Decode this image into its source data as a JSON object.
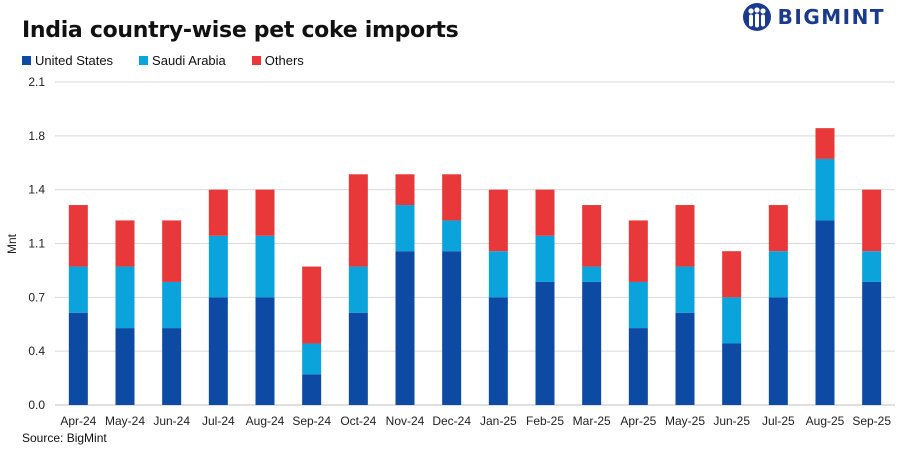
{
  "header": {
    "title": "India country-wise pet coke imports",
    "brand": "BIGMINT"
  },
  "footer": {
    "source": "Source: BigMint"
  },
  "colors": {
    "us": "#0d4aa3",
    "saudi": "#0aa3dc",
    "others": "#e8383a",
    "brand": "#1a3a8c"
  },
  "chart_data": {
    "type": "bar",
    "stacked": true,
    "title": "India country-wise pet coke imports",
    "xlabel": "",
    "ylabel": "Mnt",
    "ylim": [
      0,
      2.1
    ],
    "yticks": [
      "0.0",
      "0.4",
      "0.7",
      "1.1",
      "1.4",
      "1.8",
      "2.1"
    ],
    "ytick_values": [
      0,
      0.35,
      0.7,
      1.05,
      1.4,
      1.75,
      2.1
    ],
    "grid": true,
    "legend_position": "top-left",
    "categories": [
      "Apr-24",
      "May-24",
      "Jun-24",
      "Jul-24",
      "Aug-24",
      "Sep-24",
      "Oct-24",
      "Nov-24",
      "Dec-24",
      "Jan-25",
      "Feb-25",
      "Mar-25",
      "Apr-25",
      "May-25",
      "Jun-25",
      "Jul-25",
      "Aug-25",
      "Sep-25"
    ],
    "series": [
      {
        "name": "United States",
        "values": [
          0.6,
          0.5,
          0.5,
          0.7,
          0.7,
          0.2,
          0.6,
          1.0,
          1.0,
          0.7,
          0.8,
          0.8,
          0.5,
          0.6,
          0.4,
          0.7,
          1.2,
          0.8
        ]
      },
      {
        "name": "Saudi Arabia",
        "values": [
          0.3,
          0.4,
          0.3,
          0.4,
          0.4,
          0.2,
          0.3,
          0.3,
          0.2,
          0.3,
          0.3,
          0.1,
          0.3,
          0.3,
          0.3,
          0.3,
          0.4,
          0.2
        ]
      },
      {
        "name": "Others",
        "values": [
          0.4,
          0.3,
          0.4,
          0.3,
          0.3,
          0.5,
          0.6,
          0.2,
          0.3,
          0.4,
          0.3,
          0.4,
          0.4,
          0.4,
          0.3,
          0.3,
          0.2,
          0.4
        ]
      }
    ]
  }
}
